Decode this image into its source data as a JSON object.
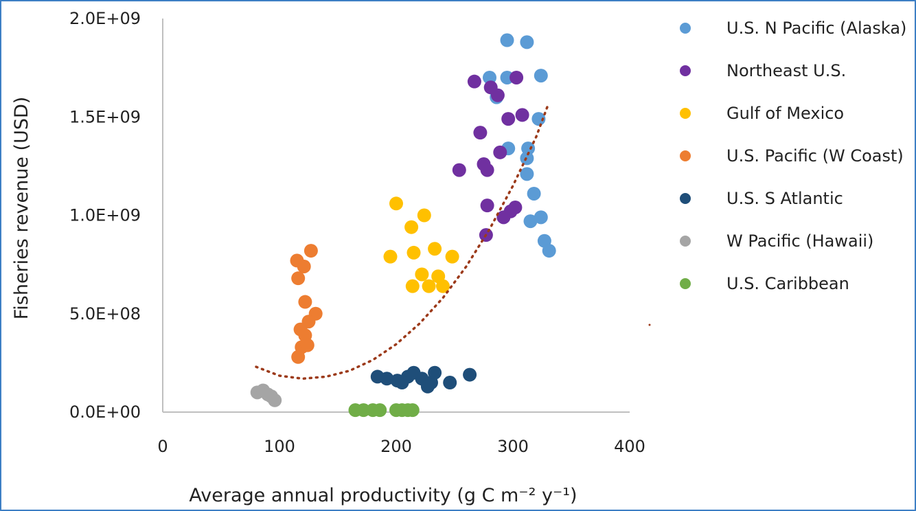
{
  "chart_data": {
    "type": "scatter",
    "xlabel": "Average annual productivity (g C m⁻² y⁻¹)",
    "ylabel": "Fisheries revenue (USD)",
    "xlim": [
      0,
      400
    ],
    "ylim": [
      0,
      2000000000
    ],
    "x_ticks": [
      "0",
      "100",
      "200",
      "300",
      "400"
    ],
    "y_ticks": [
      "0.0E+00",
      "5.0E+08",
      "1.0E+09",
      "1.5E+09",
      "2.0E+09"
    ],
    "grid": false,
    "legend_position": "right",
    "trendline": {
      "style": "dotted polynomial",
      "color": "#9c3a1a",
      "points": [
        [
          80,
          230000000
        ],
        [
          100,
          185000000
        ],
        [
          120,
          170000000
        ],
        [
          140,
          180000000
        ],
        [
          160,
          210000000
        ],
        [
          180,
          265000000
        ],
        [
          200,
          345000000
        ],
        [
          220,
          450000000
        ],
        [
          240,
          580000000
        ],
        [
          260,
          740000000
        ],
        [
          280,
          930000000
        ],
        [
          300,
          1150000000
        ],
        [
          320,
          1400000000
        ],
        [
          330,
          1560000000
        ]
      ]
    },
    "series": [
      {
        "name": "U.S. N Pacific (Alaska)",
        "color": "#5b9bd5",
        "points": [
          [
            295,
            1890000000
          ],
          [
            312,
            1880000000
          ],
          [
            280,
            1700000000
          ],
          [
            295,
            1700000000
          ],
          [
            324,
            1710000000
          ],
          [
            286,
            1600000000
          ],
          [
            322,
            1490000000
          ],
          [
            296,
            1340000000
          ],
          [
            313,
            1340000000
          ],
          [
            312,
            1290000000
          ],
          [
            312,
            1210000000
          ],
          [
            318,
            1110000000
          ],
          [
            315,
            970000000
          ],
          [
            324,
            990000000
          ],
          [
            327,
            870000000
          ],
          [
            331,
            820000000
          ]
        ]
      },
      {
        "name": "Northeast U.S.",
        "color": "#7030a0",
        "points": [
          [
            267,
            1680000000
          ],
          [
            281,
            1650000000
          ],
          [
            303,
            1700000000
          ],
          [
            287,
            1610000000
          ],
          [
            296,
            1490000000
          ],
          [
            308,
            1510000000
          ],
          [
            272,
            1420000000
          ],
          [
            289,
            1320000000
          ],
          [
            275,
            1260000000
          ],
          [
            278,
            1230000000
          ],
          [
            254,
            1230000000
          ],
          [
            278,
            1050000000
          ],
          [
            302,
            1040000000
          ],
          [
            298,
            1020000000
          ],
          [
            292,
            990000000
          ],
          [
            277,
            900000000
          ]
        ]
      },
      {
        "name": "Gulf of Mexico",
        "color": "#ffc000",
        "points": [
          [
            200,
            1060000000
          ],
          [
            213,
            940000000
          ],
          [
            224,
            1000000000
          ],
          [
            195,
            790000000
          ],
          [
            215,
            810000000
          ],
          [
            233,
            830000000
          ],
          [
            248,
            790000000
          ],
          [
            222,
            700000000
          ],
          [
            236,
            690000000
          ],
          [
            214,
            640000000
          ],
          [
            228,
            640000000
          ],
          [
            240,
            640000000
          ]
        ]
      },
      {
        "name": "U.S. Pacific (W Coast)",
        "color": "#ed7d31",
        "points": [
          [
            127,
            820000000
          ],
          [
            115,
            770000000
          ],
          [
            121,
            740000000
          ],
          [
            116,
            680000000
          ],
          [
            122,
            560000000
          ],
          [
            131,
            500000000
          ],
          [
            125,
            460000000
          ],
          [
            118,
            420000000
          ],
          [
            122,
            390000000
          ],
          [
            119,
            330000000
          ],
          [
            124,
            340000000
          ],
          [
            116,
            280000000
          ]
        ]
      },
      {
        "name": "U.S. S Atlantic",
        "color": "#1f4e79",
        "points": [
          [
            184,
            180000000
          ],
          [
            192,
            170000000
          ],
          [
            201,
            160000000
          ],
          [
            210,
            180000000
          ],
          [
            215,
            200000000
          ],
          [
            222,
            170000000
          ],
          [
            230,
            150000000
          ],
          [
            233,
            200000000
          ],
          [
            227,
            130000000
          ],
          [
            246,
            150000000
          ],
          [
            263,
            190000000
          ],
          [
            205,
            150000000
          ]
        ]
      },
      {
        "name": "W Pacific (Hawaii)",
        "color": "#a5a5a5",
        "points": [
          [
            81,
            100000000
          ],
          [
            86,
            110000000
          ],
          [
            90,
            90000000
          ],
          [
            93,
            80000000
          ],
          [
            96,
            60000000
          ]
        ]
      },
      {
        "name": "U.S. Caribbean",
        "color": "#70ad47",
        "points": [
          [
            165,
            10000000
          ],
          [
            172,
            10000000
          ],
          [
            180,
            10000000
          ],
          [
            186,
            10000000
          ],
          [
            200,
            10000000
          ],
          [
            205,
            10000000
          ],
          [
            210,
            10000000
          ],
          [
            214,
            10000000
          ]
        ]
      }
    ]
  }
}
